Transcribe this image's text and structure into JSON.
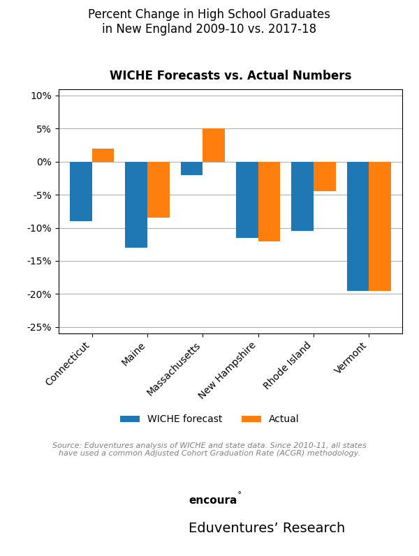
{
  "chart_data": {
    "type": "bar",
    "title": "Percent Change in High School Graduates\nin New England 2009-10 vs. 2017-18",
    "subtitle": "WICHE Forecasts vs. Actual Numbers",
    "categories": [
      "Connecticut",
      "Maine",
      "Massachusetts",
      "New Hampshire",
      "Rhode Island",
      "Vermont"
    ],
    "series": [
      {
        "name": "WICHE forecast",
        "values": [
          -9.0,
          -13.0,
          -2.0,
          -11.5,
          -10.5,
          -19.5
        ]
      },
      {
        "name": "Actual",
        "values": [
          2.0,
          -8.5,
          5.0,
          -12.0,
          -4.5,
          -19.5
        ]
      }
    ],
    "ylim": [
      -26,
      11
    ],
    "yticks": [
      {
        "value": -25,
        "label": "-25%"
      },
      {
        "value": -20,
        "label": "-20%"
      },
      {
        "value": -15,
        "label": "-15%"
      },
      {
        "value": -10,
        "label": "-10%"
      },
      {
        "value": -5,
        "label": "-5%"
      },
      {
        "value": 0,
        "label": "0%"
      },
      {
        "value": 5,
        "label": "5%"
      },
      {
        "value": 10,
        "label": "10%"
      }
    ],
    "grid": true,
    "legend": "upper center",
    "annotations": [
      "Source: Eduventures analysis of WICHE and state data. Since 2010-11, all states\nhave used a common Adjusted Cohort Graduation Rate (ACGR) methodology.",
      "encoura",
      "˚",
      "Eduventures’ Research"
    ]
  }
}
